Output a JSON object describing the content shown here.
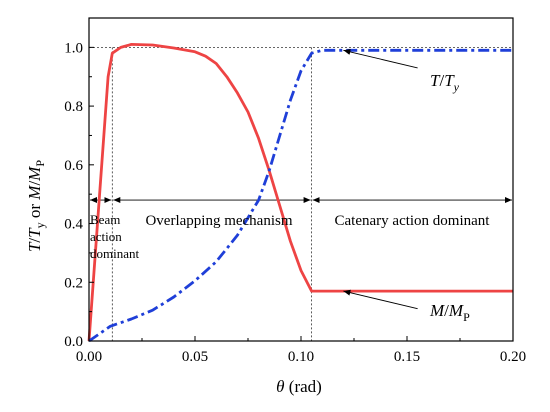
{
  "chart_data": {
    "type": "line",
    "xlabel_symbol": "θ",
    "xlabel_unit": "(rad)",
    "ylabel": {
      "t_sym": "T",
      "slash1": "/",
      "ty_sym": "T",
      "ty_sub": "y",
      "or_text": " or ",
      "m_sym": "M",
      "slash2": "/",
      "mp_sym": "M",
      "mp_sub": "P"
    },
    "xlim": [
      0,
      0.2
    ],
    "ylim": [
      0,
      1.1
    ],
    "x_ticks": [
      {
        "value": 0.0,
        "label": "0.00"
      },
      {
        "value": 0.05,
        "label": "0.05"
      },
      {
        "value": 0.1,
        "label": "0.10"
      },
      {
        "value": 0.15,
        "label": "0.15"
      },
      {
        "value": 0.2,
        "label": "0.20"
      }
    ],
    "y_ticks": [
      {
        "value": 0.0,
        "label": "0.0"
      },
      {
        "value": 0.2,
        "label": "0.2"
      },
      {
        "value": 0.4,
        "label": "0.4"
      },
      {
        "value": 0.6,
        "label": "0.6"
      },
      {
        "value": 0.8,
        "label": "0.8"
      },
      {
        "value": 1.0,
        "label": "1.0"
      }
    ],
    "series": [
      {
        "name": "M/MP",
        "color": "#ee4444",
        "style": "solid",
        "x": [
          0,
          0.005,
          0.009,
          0.011,
          0.015,
          0.02,
          0.03,
          0.04,
          0.05,
          0.055,
          0.06,
          0.065,
          0.07,
          0.075,
          0.08,
          0.085,
          0.09,
          0.095,
          0.1,
          0.105,
          0.11,
          0.15,
          0.2
        ],
        "values": [
          0,
          0.5,
          0.9,
          0.98,
          1.0,
          1.01,
          1.008,
          0.998,
          0.985,
          0.97,
          0.945,
          0.9,
          0.845,
          0.78,
          0.69,
          0.58,
          0.46,
          0.34,
          0.24,
          0.17,
          0.17,
          0.17,
          0.17
        ]
      },
      {
        "name": "T/Ty",
        "color": "#1f3fd8",
        "style": "dashdot",
        "x": [
          0,
          0.005,
          0.01,
          0.02,
          0.03,
          0.04,
          0.05,
          0.06,
          0.07,
          0.08,
          0.085,
          0.09,
          0.095,
          0.1,
          0.105,
          0.11,
          0.15,
          0.2
        ],
        "values": [
          0,
          0.025,
          0.05,
          0.075,
          0.105,
          0.15,
          0.205,
          0.27,
          0.36,
          0.48,
          0.58,
          0.7,
          0.82,
          0.92,
          0.98,
          0.99,
          0.99,
          0.99
        ]
      }
    ],
    "guides": {
      "horizontal_y": 1.0,
      "vertical_x": [
        0.011,
        0.105,
        0.2
      ],
      "arrow_row_y": 0.48,
      "arrow_spans": [
        [
          0.0,
          0.011
        ],
        [
          0.011,
          0.105
        ],
        [
          0.105,
          0.2
        ]
      ]
    },
    "annotations": {
      "beam_lines": [
        "Beam",
        "action",
        "dominant"
      ],
      "overlapping": "Overlapping mechanism",
      "catenary": "Catenary action dominant"
    },
    "series_labels": {
      "t": {
        "sym": "T",
        "slash": "/",
        "sub_sym": "T",
        "sub": "y"
      },
      "m": {
        "sym": "M",
        "slash": "/",
        "sub_sym": "M",
        "sub": "P"
      }
    },
    "series_label_pointers": {
      "t": {
        "from": [
          0.12,
          0.99
        ],
        "to": [
          0.155,
          0.93
        ]
      },
      "m": {
        "from": [
          0.12,
          0.17
        ],
        "to": [
          0.155,
          0.11
        ]
      }
    }
  }
}
